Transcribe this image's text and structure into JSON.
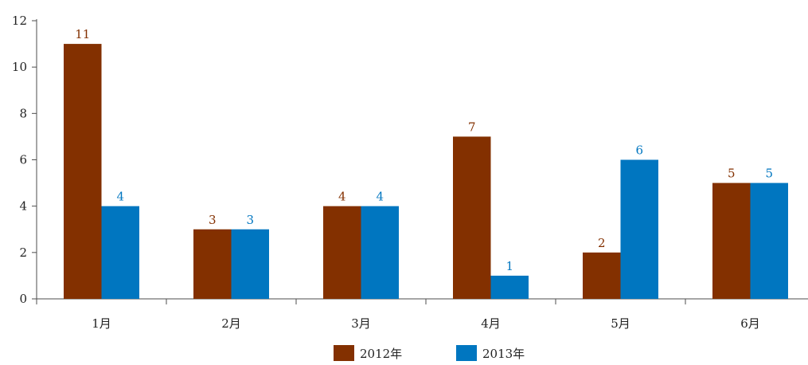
{
  "chart_data": {
    "type": "bar",
    "categories": [
      "1月",
      "2月",
      "3月",
      "4月",
      "5月",
      "6月"
    ],
    "series": [
      {
        "name": "2012年",
        "values": [
          11,
          3,
          4,
          7,
          2,
          5
        ],
        "color": "#833000"
      },
      {
        "name": "2013年",
        "values": [
          4,
          3,
          4,
          1,
          6,
          5
        ],
        "color": "#0076c0"
      }
    ],
    "ylim": [
      0,
      12
    ],
    "yticks": [
      "0",
      "2",
      "4",
      "6",
      "8",
      "10",
      "12"
    ],
    "grid": false,
    "legend_position": "bottom",
    "data_labels": true
  }
}
